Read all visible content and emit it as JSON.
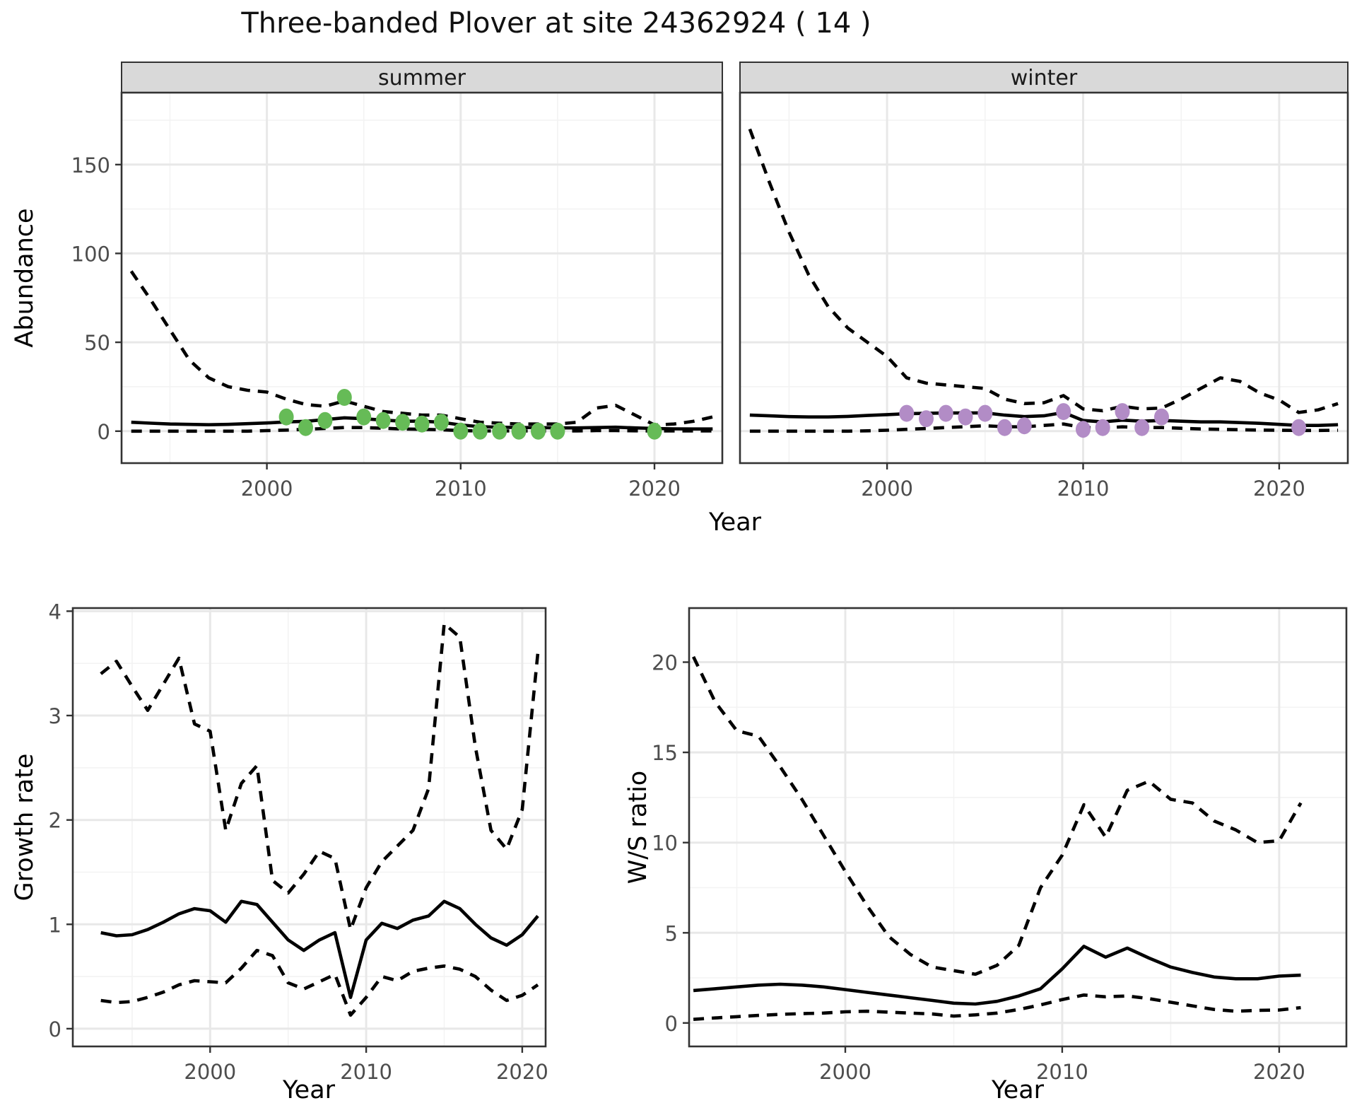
{
  "title": "Three-banded Plover at site 24362924 ( 14 )",
  "facets": {
    "summer": "summer",
    "winter": "winter"
  },
  "axis": {
    "x_label": "Year",
    "abundance_label": "Abundance",
    "growth_label": "Growth rate",
    "ws_label": "W/S ratio"
  },
  "colors": {
    "background": "#ffffff",
    "panel_border": "#333333",
    "grid_major": "#e8e8e8",
    "grid_minor": "#f3f3f3",
    "line": "#000000",
    "tick_label": "#4d4d4d",
    "strip_bg": "#d9d9d9",
    "summer_point": "#66bb57",
    "winter_point": "#b28cc6"
  },
  "chart_data": [
    {
      "id": "abundance_summer",
      "type": "line",
      "facet": "summer",
      "title": "Three-banded Plover at site 24362924 ( 14 )",
      "xlabel": "Year",
      "ylabel": "Abundance",
      "legend": "none",
      "grid": true,
      "xlim": [
        1992.5,
        2023.5
      ],
      "ylim": [
        -18,
        190.5
      ],
      "x_ticks": [
        2000,
        2010,
        2020
      ],
      "y_ticks": [
        0,
        50,
        100,
        150
      ],
      "x_minor": [
        1995,
        2005,
        2015
      ],
      "y_minor": [
        25,
        75,
        125,
        175
      ],
      "years": [
        1993,
        1994,
        1995,
        1996,
        1997,
        1998,
        1999,
        2000,
        2001,
        2002,
        2003,
        2004,
        2005,
        2006,
        2007,
        2008,
        2009,
        2010,
        2011,
        2012,
        2013,
        2014,
        2015,
        2016,
        2017,
        2018,
        2019,
        2020,
        2021,
        2022,
        2023
      ],
      "series": [
        {
          "name": "median",
          "style": "solid",
          "values": [
            5,
            4.5,
            4,
            3.8,
            3.6,
            3.8,
            4.2,
            4.6,
            5.2,
            5.5,
            6.5,
            7.5,
            7,
            6.2,
            5.6,
            5.6,
            5,
            3.5,
            2.5,
            2.2,
            2,
            2,
            1.8,
            1.8,
            2,
            2.2,
            1.8,
            1.5,
            1.3,
            1.2,
            1.2
          ]
        },
        {
          "name": "upper_ci",
          "style": "dashed",
          "values": [
            90,
            74,
            57,
            40,
            30,
            25,
            23,
            22,
            18,
            15,
            14,
            17,
            14,
            11,
            10,
            9,
            9,
            7,
            5,
            4.5,
            4,
            4,
            4,
            5,
            13,
            14.5,
            9,
            3.5,
            4,
            5.5,
            8
          ]
        },
        {
          "name": "lower_ci",
          "style": "dashed",
          "values": [
            0,
            0,
            0,
            0,
            0,
            0,
            0,
            0.3,
            0.6,
            1,
            1.5,
            2,
            2,
            1.6,
            1.2,
            1,
            0.8,
            0.3,
            0.1,
            0.1,
            0.1,
            0.1,
            0.1,
            0.1,
            0.3,
            0.3,
            0.2,
            0.1,
            0.1,
            0.1,
            0.1
          ]
        }
      ],
      "points": {
        "name": "observed_counts",
        "color": "#66bb57",
        "x": [
          2001,
          2002,
          2003,
          2004,
          2005,
          2006,
          2007,
          2008,
          2009,
          2010,
          2011,
          2012,
          2013,
          2014,
          2015,
          2020
        ],
        "y": [
          8,
          2,
          6,
          19,
          8,
          6,
          5,
          4,
          5,
          0,
          0,
          0,
          0,
          0,
          0,
          0
        ]
      }
    },
    {
      "id": "abundance_winter",
      "type": "line",
      "facet": "winter",
      "xlabel": "Year",
      "ylabel": "Abundance",
      "legend": "none",
      "grid": true,
      "xlim": [
        1992.5,
        2023.5
      ],
      "ylim": [
        -18,
        190.5
      ],
      "x_ticks": [
        2000,
        2010,
        2020
      ],
      "y_ticks": [
        0,
        50,
        100,
        150
      ],
      "x_minor": [
        1995,
        2005,
        2015
      ],
      "y_minor": [
        25,
        75,
        125,
        175
      ],
      "years": [
        1993,
        1994,
        1995,
        1996,
        1997,
        1998,
        1999,
        2000,
        2001,
        2002,
        2003,
        2004,
        2005,
        2006,
        2007,
        2008,
        2009,
        2010,
        2011,
        2012,
        2013,
        2014,
        2015,
        2016,
        2017,
        2018,
        2019,
        2020,
        2021,
        2022,
        2023
      ],
      "series": [
        {
          "name": "median",
          "style": "solid",
          "values": [
            9,
            8.6,
            8.2,
            8,
            8,
            8.3,
            8.8,
            9.3,
            9.8,
            10,
            10.2,
            10.2,
            10.3,
            9,
            8.2,
            8.6,
            10.5,
            6,
            5.2,
            6.2,
            5.6,
            6,
            5.6,
            5.2,
            5.2,
            4.8,
            4.4,
            3.8,
            3.2,
            3.2,
            3.6
          ]
        },
        {
          "name": "upper_ci",
          "style": "dashed",
          "values": [
            170,
            140,
            112,
            88,
            70,
            58,
            50,
            42,
            30,
            27,
            26,
            25,
            24,
            18,
            15.5,
            16,
            20,
            12.5,
            11.5,
            14,
            12.5,
            13,
            18,
            24,
            30,
            28,
            21.5,
            17.5,
            10.5,
            12,
            15.5
          ]
        },
        {
          "name": "lower_ci",
          "style": "dashed",
          "values": [
            0,
            0,
            0,
            0,
            0,
            0,
            0.2,
            0.5,
            1,
            1.5,
            2,
            2.5,
            3,
            2.5,
            2.4,
            3.2,
            4,
            2,
            1.8,
            2.4,
            2,
            2,
            1.6,
            1.2,
            1,
            0.8,
            0.6,
            0.5,
            0.4,
            0.4,
            0.5
          ]
        }
      ],
      "points": {
        "name": "observed_counts",
        "color": "#b28cc6",
        "x": [
          2001,
          2002,
          2003,
          2004,
          2005,
          2006,
          2007,
          2009,
          2010,
          2011,
          2012,
          2013,
          2014,
          2021
        ],
        "y": [
          10,
          7,
          10,
          8,
          10,
          2,
          3,
          11,
          1,
          2,
          11,
          2,
          8,
          2
        ]
      }
    },
    {
      "id": "growth_rate",
      "type": "line",
      "xlabel": "Year",
      "ylabel": "Growth rate",
      "legend": "none",
      "grid": true,
      "xlim": [
        1991.2,
        2021.5
      ],
      "ylim": [
        -0.17,
        4.03
      ],
      "x_ticks": [
        2000,
        2010,
        2020
      ],
      "y_ticks": [
        0,
        1,
        2,
        3,
        4
      ],
      "x_minor": [
        1995,
        2005,
        2015
      ],
      "y_minor": [
        0.5,
        1.5,
        2.5,
        3.5
      ],
      "years": [
        1993,
        1994,
        1995,
        1996,
        1997,
        1998,
        1999,
        2000,
        2001,
        2002,
        2003,
        2004,
        2005,
        2006,
        2007,
        2008,
        2009,
        2010,
        2011,
        2012,
        2013,
        2014,
        2015,
        2016,
        2017,
        2018,
        2019,
        2020,
        2021
      ],
      "series": [
        {
          "name": "median",
          "style": "solid",
          "values": [
            0.92,
            0.89,
            0.9,
            0.95,
            1.02,
            1.1,
            1.15,
            1.13,
            1.02,
            1.22,
            1.19,
            1.02,
            0.85,
            0.75,
            0.85,
            0.92,
            0.3,
            0.85,
            1.01,
            0.96,
            1.04,
            1.08,
            1.22,
            1.15,
            1,
            0.87,
            0.8,
            0.9,
            1.08
          ]
        },
        {
          "name": "upper_ci",
          "style": "dashed",
          "values": [
            3.4,
            3.52,
            3.28,
            3.05,
            3.3,
            3.55,
            2.92,
            2.85,
            1.9,
            2.35,
            2.52,
            1.42,
            1.3,
            1.48,
            1.7,
            1.63,
            0.95,
            1.35,
            1.6,
            1.75,
            1.9,
            2.3,
            3.88,
            3.75,
            2.7,
            1.9,
            1.72,
            2.1,
            3.6
          ]
        },
        {
          "name": "lower_ci",
          "style": "dashed",
          "values": [
            0.27,
            0.25,
            0.26,
            0.3,
            0.35,
            0.42,
            0.46,
            0.45,
            0.44,
            0.58,
            0.75,
            0.7,
            0.44,
            0.38,
            0.45,
            0.52,
            0.13,
            0.3,
            0.5,
            0.46,
            0.55,
            0.58,
            0.6,
            0.57,
            0.5,
            0.37,
            0.27,
            0.32,
            0.42
          ]
        }
      ]
    },
    {
      "id": "ws_ratio",
      "type": "line",
      "xlabel": "Year",
      "ylabel": "W/S ratio",
      "legend": "none",
      "grid": true,
      "xlim": [
        1992.8,
        2023.1
      ],
      "ylim": [
        -1.3,
        23.0
      ],
      "x_ticks": [
        2000,
        2010,
        2020
      ],
      "y_ticks": [
        0,
        5,
        10,
        15,
        20
      ],
      "x_minor": [
        1995,
        2005,
        2015
      ],
      "y_minor": [
        2.5,
        7.5,
        12.5,
        17.5
      ],
      "years": [
        1993,
        1994,
        1995,
        1996,
        1997,
        1998,
        1999,
        2000,
        2001,
        2002,
        2003,
        2004,
        2005,
        2006,
        2007,
        2008,
        2009,
        2010,
        2011,
        2012,
        2013,
        2014,
        2015,
        2016,
        2017,
        2018,
        2019,
        2020,
        2021
      ],
      "series": [
        {
          "name": "median",
          "style": "solid",
          "values": [
            1.8,
            1.9,
            2,
            2.1,
            2.15,
            2.1,
            2,
            1.85,
            1.7,
            1.55,
            1.4,
            1.25,
            1.1,
            1.05,
            1.2,
            1.5,
            1.9,
            3,
            4.25,
            3.65,
            4.15,
            3.6,
            3.1,
            2.8,
            2.55,
            2.45,
            2.45,
            2.6,
            2.65
          ]
        },
        {
          "name": "upper_ci",
          "style": "dashed",
          "values": [
            20.3,
            17.8,
            16.2,
            15.9,
            14.2,
            12.4,
            10.4,
            8.4,
            6.5,
            4.8,
            3.8,
            3.1,
            2.9,
            2.7,
            3.2,
            4.3,
            7.5,
            9.3,
            12.1,
            10.3,
            12.9,
            13.4,
            12.4,
            12.2,
            11.2,
            10.7,
            10,
            10.1,
            12.2
          ]
        },
        {
          "name": "lower_ci",
          "style": "dashed",
          "values": [
            0.2,
            0.28,
            0.35,
            0.42,
            0.48,
            0.52,
            0.55,
            0.62,
            0.65,
            0.6,
            0.55,
            0.5,
            0.38,
            0.45,
            0.55,
            0.75,
            1,
            1.3,
            1.55,
            1.45,
            1.5,
            1.35,
            1.15,
            0.95,
            0.75,
            0.65,
            0.7,
            0.72,
            0.85
          ]
        }
      ]
    }
  ]
}
